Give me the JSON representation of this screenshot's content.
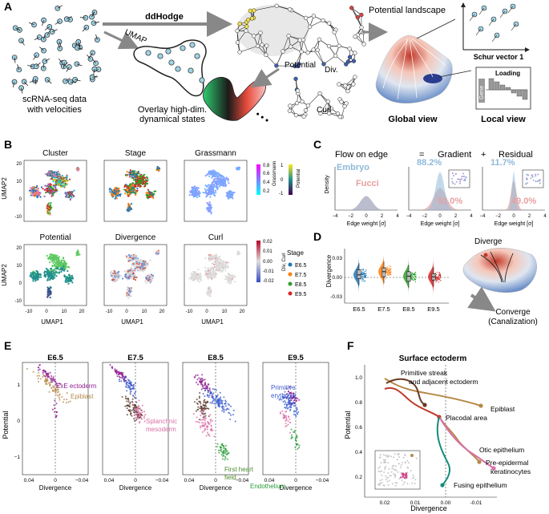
{
  "panelA": {
    "letter": "A",
    "ddhodge": "ddHodge",
    "umap": "UMAP",
    "scrna": [
      "scRNA-seq data",
      "with velocities"
    ],
    "overlay": [
      "Overlay high-dim.",
      "dynamical states"
    ],
    "potential_label": "Potential",
    "div_label": "Div.",
    "curl_label": "Curl",
    "landscape_title": "Potential landscape",
    "schur": "Schur vector 1",
    "loading": "Loading",
    "gene_label": "Gene",
    "global_view": "Global view",
    "local_view": "Local view",
    "dots": "• • •"
  },
  "panelB": {
    "letter": "B",
    "titles": [
      "Cluster",
      "Stage",
      "Grassmann",
      "Potential",
      "Divergence",
      "Curl"
    ],
    "umap1": "UMAP1",
    "umap2": "UMAP2",
    "xticks": [
      "-10",
      "0",
      "10",
      "20"
    ],
    "yticks": [
      "20",
      "10",
      "0",
      "-10"
    ],
    "cbar_potential": {
      "label": "Potential",
      "ticks": [
        "1",
        "0",
        "-1"
      ]
    },
    "cbar_grassmann": {
      "label": "Grassmann",
      "ticks": [
        "0.8",
        "0.6",
        "0.4",
        "0.2"
      ]
    },
    "cbar_divcurl": {
      "label": "Div, Curl",
      "ticks": [
        "0.02",
        "0.01",
        "0.00",
        "-0.01",
        "-0.02"
      ]
    },
    "stage_legend_title": "Stage",
    "stages": [
      {
        "name": "E6.5",
        "color": "#1f77b4"
      },
      {
        "name": "E7.5",
        "color": "#ff7f0e"
      },
      {
        "name": "E8.5",
        "color": "#2ca02c"
      },
      {
        "name": "E9.5",
        "color": "#d62728"
      }
    ]
  },
  "panelC": {
    "letter": "C",
    "header": {
      "flow": "Flow on edge",
      "eq": "=",
      "gradient": "Gradient",
      "plus": "+",
      "residual": "Residual"
    },
    "embryo_label": "Embryo",
    "fucci_label": "Fucci",
    "gradient_pcts": {
      "embryo": "88.2%",
      "fucci": "51.0%"
    },
    "residual_pcts": {
      "embryo": "11.7%",
      "fucci": "49.0%"
    },
    "ylabel": "Density",
    "xlabel": "Edge weight [σ]",
    "xticks": [
      "−4",
      "−2",
      "0",
      "2",
      "4"
    ]
  },
  "panelD": {
    "letter": "D",
    "ylabel": "Divergence",
    "yticks": [
      "0.03",
      "0.00",
      "-0.03"
    ],
    "diverge": "Diverge",
    "converge": "Converge",
    "canalization": "(Canalization)",
    "chart_data": {
      "type": "violin",
      "categories": [
        "E6.5",
        "E7.5",
        "E8.5",
        "E9.5"
      ],
      "medians": [
        0.004,
        0.009,
        0.002,
        0.001
      ],
      "q1": [
        -0.002,
        0.001,
        -0.006,
        -0.004
      ],
      "q3": [
        0.012,
        0.015,
        0.009,
        0.006
      ],
      "ylim": [
        -0.04,
        0.045
      ],
      "colors": [
        "#1f77b4",
        "#ff7f0e",
        "#2ca02c",
        "#d62728"
      ]
    }
  },
  "panelE": {
    "letter": "E",
    "titles": [
      "E6.5",
      "E7.5",
      "E8.5",
      "E9.5"
    ],
    "ylabel": "Potential",
    "xlabel": "Divergence",
    "xticks": [
      "0.04",
      "0",
      "−0.04"
    ],
    "yticks": [
      "1",
      "0",
      "−1"
    ],
    "labels": {
      "exe": "ExE ectoderm",
      "epiblast": "Epiblast",
      "splanchnic": [
        "Splanchnic",
        "mesoderm"
      ],
      "first_heart": [
        "First heart",
        "field"
      ],
      "endothelium": "Endothelium",
      "primitive_erythroid": [
        "Primitive",
        "erythroid"
      ]
    }
  },
  "panelF": {
    "letter": "F",
    "title": "Surface ectoderm",
    "ylabel": "Potential",
    "xlabel": "Divergence",
    "xticks": [
      "0.02",
      "0.01",
      "0.00",
      "-0.01"
    ],
    "yticks": [
      "1.0",
      "0.8",
      "0.6",
      "0.4",
      "0.2"
    ],
    "labels": {
      "primitive_streak": [
        "Primitive streak",
        "and adjacent ectoderm"
      ],
      "epiblast": "Epiblast",
      "placodal": "Placodal area",
      "otic": "Otic epithelium",
      "pre_epidermal": [
        "Pre-epidermal",
        "keratinocytes"
      ],
      "fusing": "Fusing epithelium"
    }
  }
}
